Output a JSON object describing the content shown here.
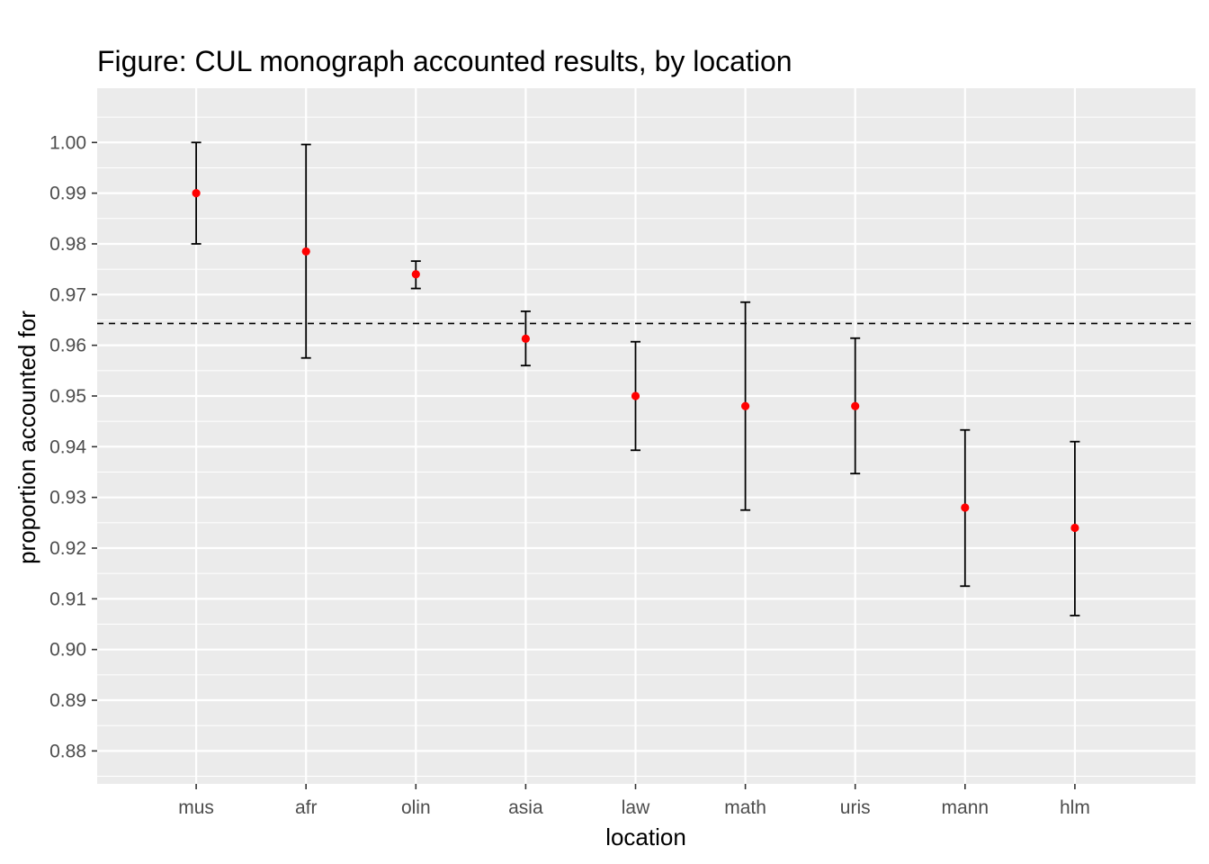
{
  "chart_data": {
    "type": "scatter",
    "title": "Figure: CUL monograph accounted results, by location",
    "xlabel": "location",
    "ylabel": "proportion accounted for",
    "categories": [
      "mus",
      "afr",
      "olin",
      "asia",
      "law",
      "math",
      "uris",
      "mann",
      "hlm"
    ],
    "values": [
      0.99,
      0.9785,
      0.974,
      0.9613,
      0.95,
      0.948,
      0.948,
      0.928,
      0.924
    ],
    "error_lower": [
      0.98,
      0.9575,
      0.9712,
      0.956,
      0.9393,
      0.9275,
      0.9347,
      0.9125,
      0.9067
    ],
    "error_upper": [
      1.0,
      0.9996,
      0.9766,
      0.9667,
      0.9607,
      0.9685,
      0.9614,
      0.9433,
      0.941
    ],
    "reference_line": 0.9643,
    "yticks": [
      "1.00",
      "0.99",
      "0.98",
      "0.97",
      "0.96",
      "0.95",
      "0.94",
      "0.93",
      "0.92",
      "0.91",
      "0.90",
      "0.89",
      "0.88"
    ],
    "ylim": [
      0.8735,
      1.0107
    ],
    "grid": true,
    "legend": "none",
    "colors": {
      "panel": "#ebebeb",
      "grid": "#ffffff",
      "point": "#ff0000",
      "errorbar": "#000000",
      "reference": "#000000"
    }
  }
}
